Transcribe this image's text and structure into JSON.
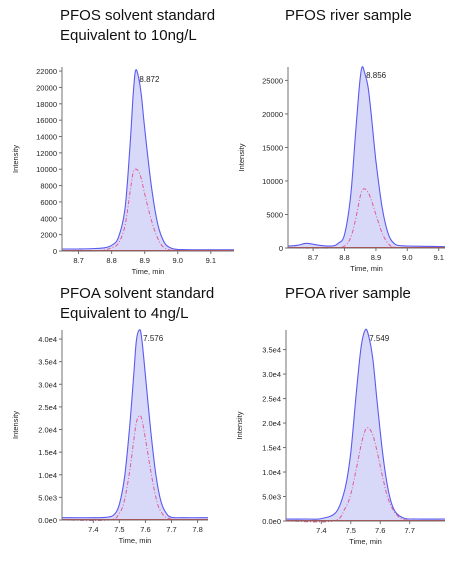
{
  "titles": {
    "p1_line1": "PFOS solvent standard",
    "p1_line2": "Equivalent to 10ng/L",
    "p2_line1": "PFOS river sample",
    "p3_line1": "PFOA solvent standard",
    "p3_line2": "Equivalent to 4ng/L",
    "p4_line1": "PFOA river sample"
  },
  "colors": {
    "fill": "#d8d8f8",
    "blue_trace": "#5a5af0",
    "pink_trace": "#e05a9a",
    "baseline_red": "#d04040",
    "axis": "#707070"
  },
  "chart_data": [
    {
      "type": "line",
      "title": "PFOS solvent standard Equivalent to 10ng/L",
      "xlabel": "Time, min",
      "ylabel": "Intensity",
      "xlim": [
        8.65,
        9.17
      ],
      "ylim": [
        0,
        22500
      ],
      "xticks": [
        8.7,
        8.8,
        8.9,
        9.0,
        9.1
      ],
      "xtick_labels": [
        "8.7",
        "8.8",
        "8.9",
        "9.0",
        "9.1"
      ],
      "yticks": [
        0,
        2000,
        4000,
        6000,
        8000,
        10000,
        12000,
        14000,
        16000,
        18000,
        20000,
        22000
      ],
      "ytick_labels": [
        "0",
        "2000",
        "4000",
        "6000",
        "8000",
        "10000",
        "12000",
        "14000",
        "16000",
        "18000",
        "20000",
        "22000"
      ],
      "peak_label": "8.872",
      "series": [
        {
          "values": {
            "x": [
              8.65,
              8.7,
              8.75,
              8.78,
              8.8,
              8.82,
              8.84,
              8.855,
              8.865,
              8.872,
              8.88,
              8.89,
              8.9,
              8.92,
              8.94,
              8.96,
              8.98,
              9.0,
              9.05,
              9.1,
              9.17
            ],
            "y": [
              250,
              250,
              300,
              400,
              700,
              1600,
              5000,
              12500,
              19000,
              22000,
              21500,
              19000,
              15000,
              8000,
              3200,
              1000,
              350,
              200,
              150,
              150,
              150
            ]
          }
        },
        {
          "values": {
            "x": [
              8.65,
              8.75,
              8.78,
              8.8,
              8.82,
              8.84,
              8.855,
              8.865,
              8.872,
              8.88,
              8.89,
              8.9,
              8.92,
              8.94,
              8.96,
              9.0,
              9.17
            ],
            "y": [
              0,
              0,
              150,
              400,
              900,
              3000,
              7000,
              9600,
              10000,
              9800,
              8800,
              7000,
              3800,
              1500,
              400,
              50,
              0
            ]
          }
        }
      ]
    },
    {
      "type": "line",
      "title": "PFOS river sample",
      "xlabel": "Time, min",
      "ylabel": "Intensity",
      "xlim": [
        8.62,
        9.12
      ],
      "ylim": [
        0,
        27000
      ],
      "xticks": [
        8.7,
        8.8,
        8.9,
        9.0,
        9.1
      ],
      "xtick_labels": [
        "8.7",
        "8.8",
        "8.9",
        "9.0",
        "9.1"
      ],
      "yticks": [
        0,
        5000,
        10000,
        15000,
        20000,
        25000
      ],
      "ytick_labels": [
        "0",
        "5000",
        "10000",
        "15000",
        "20000",
        "25000"
      ],
      "peak_label": "8.856",
      "series": [
        {
          "values": {
            "x": [
              8.62,
              8.65,
              8.68,
              8.72,
              8.76,
              8.78,
              8.8,
              8.82,
              8.835,
              8.848,
              8.856,
              8.865,
              8.875,
              8.885,
              8.9,
              8.92,
              8.94,
              8.96,
              8.98,
              9.0,
              9.05,
              9.12
            ],
            "y": [
              300,
              400,
              700,
              400,
              300,
              700,
              2000,
              8000,
              17000,
              24500,
              27000,
              26000,
              24000,
              20000,
              13000,
              6000,
              2000,
              600,
              350,
              300,
              250,
              200
            ]
          }
        },
        {
          "values": {
            "x": [
              8.62,
              8.76,
              8.8,
              8.82,
              8.835,
              8.848,
              8.856,
              8.865,
              8.875,
              8.885,
              8.9,
              8.92,
              8.94,
              8.96,
              9.0,
              9.12
            ],
            "y": [
              0,
              0,
              300,
              1600,
              4200,
              7300,
              8600,
              8800,
              8300,
              7200,
              5000,
              2200,
              600,
              100,
              0,
              0
            ]
          }
        }
      ]
    },
    {
      "type": "line",
      "title": "PFOA solvent standard Equivalent to 4ng/L",
      "xlabel": "Time, min",
      "ylabel": "Intensity",
      "xlim": [
        7.28,
        7.84
      ],
      "ylim": [
        0,
        42000
      ],
      "xticks": [
        7.4,
        7.5,
        7.6,
        7.7,
        7.8
      ],
      "xtick_labels": [
        "7.4",
        "7.5",
        "7.6",
        "7.7",
        "7.8"
      ],
      "yticks": [
        0,
        5000,
        10000,
        15000,
        20000,
        25000,
        30000,
        35000,
        40000
      ],
      "ytick_labels": [
        "0.0e0",
        "5.0e3",
        "1.0e4",
        "1.5e4",
        "2.0e4",
        "2.5e4",
        "3.0e4",
        "3.5e4",
        "4.0e4"
      ],
      "peak_label": "7.576",
      "series": [
        {
          "values": {
            "x": [
              7.28,
              7.4,
              7.45,
              7.48,
              7.5,
              7.52,
              7.54,
              7.555,
              7.565,
              7.576,
              7.585,
              7.6,
              7.62,
              7.64,
              7.66,
              7.68,
              7.7,
              7.75,
              7.84
            ],
            "y": [
              500,
              500,
              600,
              1200,
              3500,
              9500,
              21000,
              32000,
              39500,
              42000,
              40500,
              32000,
              20000,
              10000,
              4000,
              1500,
              600,
              500,
              500
            ]
          }
        },
        {
          "values": {
            "x": [
              7.28,
              7.46,
              7.5,
              7.52,
              7.54,
              7.555,
              7.565,
              7.576,
              7.585,
              7.6,
              7.62,
              7.64,
              7.66,
              7.7,
              7.84
            ],
            "y": [
              0,
              0,
              1500,
              4500,
              11000,
              17500,
              21500,
              23000,
              22500,
              18000,
              11000,
              5000,
              1800,
              200,
              0
            ]
          }
        }
      ]
    },
    {
      "type": "line",
      "title": "PFOA river sample",
      "xlabel": "Time, min",
      "ylabel": "Intensity",
      "xlim": [
        7.28,
        7.82
      ],
      "ylim": [
        0,
        39000
      ],
      "xticks": [
        7.4,
        7.5,
        7.6,
        7.7
      ],
      "xtick_labels": [
        "7.4",
        "7.5",
        "7.6",
        "7.7"
      ],
      "yticks": [
        0,
        5000,
        10000,
        15000,
        20000,
        25000,
        30000,
        35000
      ],
      "ytick_labels": [
        "0.0e0",
        "5.0e3",
        "1.0e4",
        "1.5e4",
        "2.0e4",
        "2.5e4",
        "3.0e4",
        "3.5e4"
      ],
      "peak_label": "7.549",
      "series": [
        {
          "values": {
            "x": [
              7.28,
              7.35,
              7.4,
              7.45,
              7.48,
              7.5,
              7.52,
              7.535,
              7.549,
              7.56,
              7.575,
              7.59,
              7.61,
              7.63,
              7.65,
              7.68,
              7.72,
              7.82
            ],
            "y": [
              400,
              400,
              500,
              1800,
              6500,
              14000,
              27000,
              35500,
              39000,
              38000,
              33000,
              24000,
              13000,
              5500,
              2000,
              600,
              400,
              400
            ]
          }
        },
        {
          "values": {
            "x": [
              7.28,
              7.44,
              7.48,
              7.5,
              7.52,
              7.535,
              7.549,
              7.56,
              7.575,
              7.59,
              7.61,
              7.63,
              7.66,
              7.7,
              7.82
            ],
            "y": [
              0,
              0,
              2500,
              5500,
              11000,
              15500,
              18500,
              19000,
              17500,
              14000,
              8500,
              4000,
              1000,
              100,
              0
            ]
          }
        }
      ]
    }
  ]
}
